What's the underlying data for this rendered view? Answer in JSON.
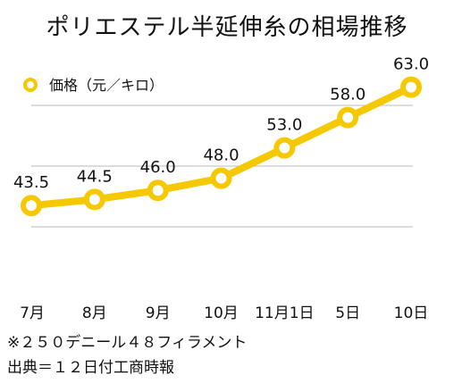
{
  "chart_data": {
    "type": "line",
    "title": "ポリエステル半延伸糸の相場推移",
    "categories": [
      "7月",
      "8月",
      "9月",
      "10月",
      "11月1日",
      "5日",
      "10日"
    ],
    "series": [
      {
        "name": "価格（元／キロ）",
        "values": [
          43.5,
          44.5,
          46.0,
          48.0,
          53.0,
          58.0,
          63.0
        ],
        "labels": [
          "43.5",
          "44.5",
          "46.0",
          "48.0",
          "53.0",
          "58.0",
          "63.0"
        ]
      }
    ],
    "ylim": [
      30,
      70
    ],
    "grid": true,
    "legend": "top-left",
    "colors": {
      "line": "#F5C800",
      "marker_fill": "#ffffff",
      "grid": "#bbbbbb",
      "text": "#111111"
    }
  },
  "notes": {
    "spec": "※２５０デニール４８フィラメント",
    "source": "出典＝１２日付工商時報"
  }
}
